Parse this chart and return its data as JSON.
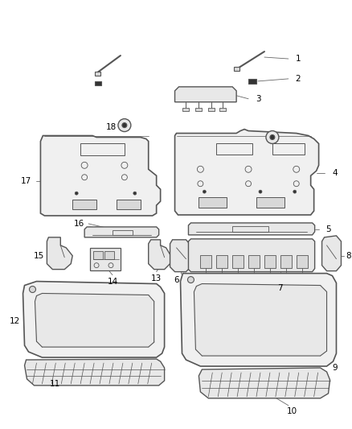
{
  "background_color": "#ffffff",
  "line_color": "#555555",
  "dark_color": "#333333",
  "label_color": "#000000",
  "figsize": [
    4.38,
    5.33
  ],
  "dpi": 100,
  "part_fill": "#f0f0f0",
  "part_fill_dark": "#d8d8d8",
  "part_fill_mid": "#e8e8e8"
}
